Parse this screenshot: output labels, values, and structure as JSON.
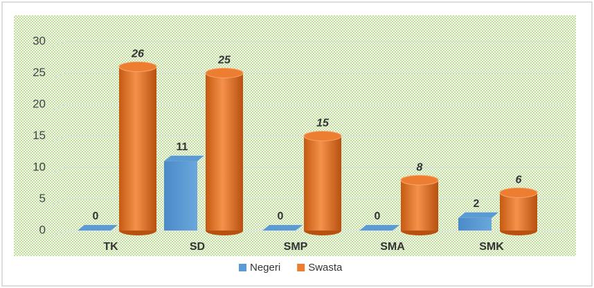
{
  "chart_data": {
    "type": "bar3d",
    "categories": [
      "TK",
      "SD",
      "SMP",
      "SMA",
      "SMK"
    ],
    "series": [
      {
        "name": "Negeri",
        "color": "#5b9bd5",
        "values": [
          0,
          11,
          0,
          0,
          2
        ]
      },
      {
        "name": "Swasta",
        "color": "#ed7d31",
        "values": [
          26,
          25,
          15,
          8,
          6
        ]
      }
    ],
    "ylim": [
      0,
      30
    ],
    "yticks": [
      0,
      5,
      10,
      15,
      20,
      25,
      30
    ],
    "grid": true,
    "legend": "bottom"
  }
}
